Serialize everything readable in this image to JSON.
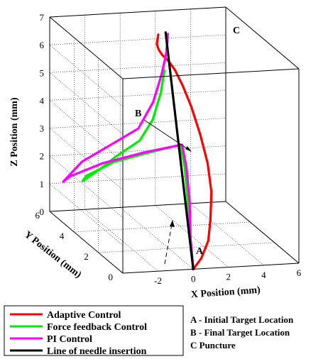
{
  "chart_data": {
    "type": "line",
    "projection": "3d",
    "xlabel": "X Position (mm)",
    "ylabel": "Y Position (mm)",
    "zlabel": "Z Position (mm)",
    "xlim": [
      -4,
      6
    ],
    "ylim": [
      0,
      6
    ],
    "zlim": [
      0,
      7
    ],
    "x_ticks": [
      "-2",
      "0",
      "2",
      "4",
      "6"
    ],
    "y_ticks": [
      "0",
      "2",
      "4",
      "6"
    ],
    "z_ticks": [
      "0",
      "1",
      "2",
      "3",
      "4",
      "5",
      "6",
      "7"
    ],
    "grid": true,
    "series": [
      {
        "name": "Adaptive Control",
        "color": "#ff0000",
        "x": [
          0.0,
          0.6,
          1.2,
          1.6,
          2.0,
          2.2,
          2.2,
          2.1,
          1.9,
          1.6,
          1.3,
          1.0,
          0.8,
          0.7,
          0.85
        ],
        "y": [
          0.0,
          0.2,
          0.5,
          0.9,
          1.4,
          2.0,
          2.6,
          3.2,
          3.6,
          3.8,
          3.9,
          4.0,
          4.0,
          4.0,
          4.1
        ],
        "z": [
          0.0,
          0.3,
          0.8,
          1.4,
          2.2,
          3.0,
          3.8,
          4.6,
          5.2,
          5.7,
          6.0,
          6.2,
          6.4,
          6.6,
          6.9
        ]
      },
      {
        "name": "Force feedback Control",
        "color": "#00ee00",
        "x": [
          0.0,
          0.4,
          0.8,
          1.1,
          1.2,
          -0.5,
          -2.0,
          -3.3,
          -3.3,
          -2.2,
          -1.2,
          0.0,
          0.6,
          1.0,
          1.2
        ],
        "y": [
          0.0,
          0.8,
          1.6,
          2.3,
          2.8,
          3.2,
          3.6,
          4.0,
          4.3,
          4.5,
          4.6,
          4.4,
          4.2,
          4.1,
          4.1
        ],
        "z": [
          0.0,
          0.8,
          1.8,
          2.8,
          3.4,
          3.0,
          2.6,
          2.0,
          1.7,
          2.0,
          2.4,
          3.0,
          3.8,
          4.8,
          5.6
        ]
      },
      {
        "name": "PI Control",
        "color": "#ff00ff",
        "x": [
          0.0,
          0.4,
          0.9,
          1.2,
          1.3,
          -0.5,
          -2.5,
          -4.0,
          -4.2,
          -3.0,
          -1.4,
          0.0,
          0.7,
          1.1,
          1.3,
          1.4
        ],
        "y": [
          0.0,
          0.8,
          1.6,
          2.3,
          2.8,
          3.3,
          3.8,
          4.3,
          4.6,
          4.8,
          4.7,
          4.5,
          4.3,
          4.2,
          4.1,
          4.1
        ],
        "z": [
          0.0,
          0.8,
          1.8,
          2.8,
          3.4,
          3.0,
          2.5,
          1.9,
          1.6,
          2.2,
          2.8,
          3.4,
          4.4,
          5.4,
          6.2,
          6.9
        ]
      },
      {
        "name": "Line of needle insertion",
        "color": "#000000",
        "x": [
          0.0,
          0.6,
          1.2
        ],
        "y": [
          0.0,
          2.0,
          4.0
        ],
        "z": [
          0.0,
          3.5,
          7.0
        ]
      }
    ],
    "annotations": [
      {
        "label": "A",
        "x": 0.0,
        "y": 0.0,
        "z": 0.0
      },
      {
        "label": "B",
        "x": 0.7,
        "y": 3.0,
        "z": 3.6
      },
      {
        "label": "C",
        "x": 1.3,
        "y": 4.1,
        "z": 7.0
      }
    ],
    "legend": {
      "placement": "bottom-left",
      "items": [
        {
          "label": "Adaptive Control",
          "color": "#ff0000"
        },
        {
          "label": "Force feedback Control",
          "color": "#00ee00"
        },
        {
          "label": "PI Control",
          "color": "#ff00ff"
        },
        {
          "label": "Line of needle insertion",
          "color": "#000000"
        }
      ]
    },
    "notes": [
      "A - Initial Target Location",
      "B - Final Target Location",
      "C   Puncture"
    ]
  }
}
